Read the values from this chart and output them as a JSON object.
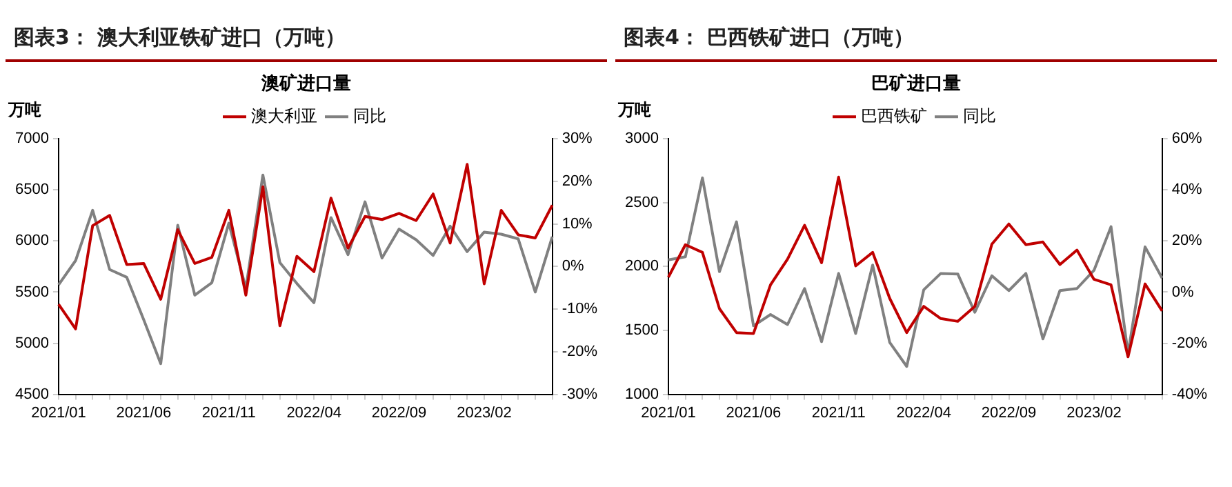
{
  "chart_data": [
    {
      "type": "line",
      "title": "图表3：  澳大利亚铁矿进口（万吨）",
      "subtitle": "澳矿进口量",
      "ylabel": "万吨",
      "categories": [
        "2021/01",
        null,
        null,
        null,
        null,
        "2021/06",
        null,
        null,
        null,
        null,
        "2021/11",
        null,
        null,
        null,
        null,
        "2022/04",
        null,
        null,
        null,
        null,
        "2022/09",
        null,
        null,
        null,
        null,
        "2023/02",
        null,
        null,
        null,
        null
      ],
      "series": [
        {
          "name": "澳大利亚",
          "color": "#c00000",
          "values": [
            5380,
            5140,
            6150,
            6250,
            5770,
            5780,
            5430,
            6110,
            5780,
            5840,
            6300,
            5470,
            6530,
            5170,
            5850,
            5700,
            6420,
            5930,
            6240,
            6210,
            6270,
            6200,
            6460,
            5980,
            6750,
            5580,
            6300,
            6060,
            6030,
            6350
          ]
        },
        {
          "name": "同比",
          "color": "#808080",
          "axis": "y2",
          "values": [
            -4.3,
            1.4,
            13.2,
            -0.7,
            -2.5,
            -12.5,
            -22.8,
            9.7,
            -6.7,
            -3.8,
            10.2,
            -5.1,
            21.5,
            0.9,
            -4,
            -8.5,
            11.5,
            2.8,
            15.2,
            2,
            8.8,
            6.3,
            2.6,
            9.5,
            3.5,
            8.1,
            7.6,
            6.5,
            -6,
            7
          ]
        }
      ],
      "ylim": [
        4500,
        7000
      ],
      "yticks": [
        4500,
        5000,
        5500,
        6000,
        6500,
        7000
      ],
      "y2lim": [
        -30,
        30
      ],
      "y2ticks": [
        {
          "value": -30,
          "label": "-30%"
        },
        {
          "value": -20,
          "label": "-20%"
        },
        {
          "value": -10,
          "label": "-10%"
        },
        {
          "value": 0,
          "label": "0%"
        },
        {
          "value": 10,
          "label": "10%"
        },
        {
          "value": 20,
          "label": "20%"
        },
        {
          "value": 30,
          "label": "30%"
        }
      ],
      "grid": false,
      "legend": "top",
      "marker": "none",
      "line_style": "solid"
    },
    {
      "type": "line",
      "title": "图表4：  巴西铁矿进口（万吨）",
      "subtitle": "巴矿进口量",
      "ylabel": "万吨",
      "categories": [
        "2021/01",
        null,
        null,
        null,
        null,
        "2021/06",
        null,
        null,
        null,
        null,
        "2021/11",
        null,
        null,
        null,
        null,
        "2022/04",
        null,
        null,
        null,
        null,
        "2022/09",
        null,
        null,
        null,
        null,
        "2023/02",
        null,
        null,
        null,
        null
      ],
      "series": [
        {
          "name": "巴西铁矿",
          "color": "#c00000",
          "values": [
            1917,
            2171,
            2111,
            1670,
            1483,
            1476,
            1857,
            2058,
            2323,
            2030,
            2700,
            2005,
            2111,
            1751,
            1483,
            1688,
            1593,
            1571,
            1688,
            2175,
            2333,
            2171,
            2192,
            2016,
            2129,
            1900,
            1857,
            1293,
            1864,
            1653
          ]
        },
        {
          "name": "同比",
          "color": "#808080",
          "axis": "y2",
          "values": [
            12.6,
            13.8,
            44.7,
            8,
            27.5,
            -13.2,
            -8.8,
            -12.7,
            1.4,
            -19.4,
            7.3,
            -16.2,
            10.6,
            -19.7,
            -29.1,
            0.9,
            7.3,
            7.1,
            -7.9,
            6.4,
            0.6,
            7.3,
            -18.3,
            0.6,
            1.4,
            8.5,
            25.6,
            -24.1,
            17.7,
            5.5
          ]
        }
      ],
      "ylim": [
        1000,
        3000
      ],
      "yticks": [
        1000,
        1500,
        2000,
        2500,
        3000
      ],
      "y2lim": [
        -40,
        60
      ],
      "y2ticks": [
        {
          "value": -40,
          "label": "-40%"
        },
        {
          "value": -20,
          "label": "-20%"
        },
        {
          "value": 0,
          "label": "0%"
        },
        {
          "value": 20,
          "label": "20%"
        },
        {
          "value": 40,
          "label": "40%"
        },
        {
          "value": 60,
          "label": "60%"
        }
      ],
      "grid": false,
      "legend": "top",
      "marker": "none",
      "line_style": "solid"
    }
  ]
}
